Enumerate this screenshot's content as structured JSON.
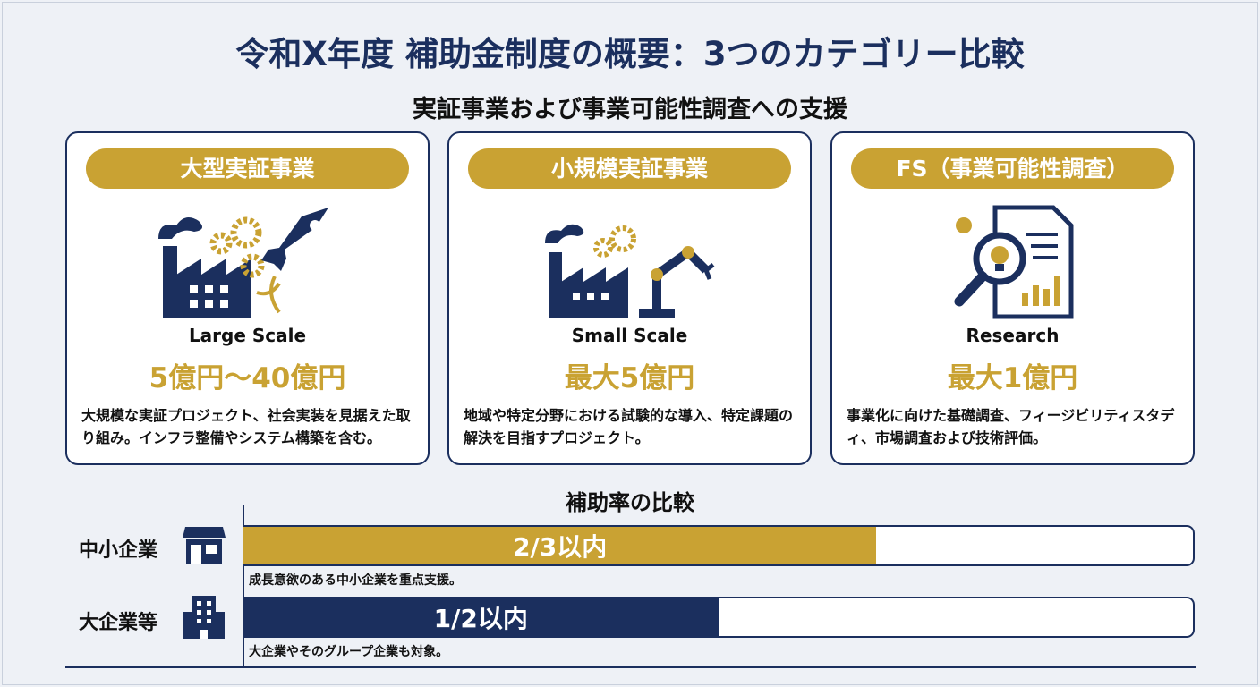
{
  "title": "令和X年度 補助金制度の概要：3つのカテゴリー比較",
  "subtitle": "実証事業および事業可能性調査への支援",
  "colors": {
    "navy": "#1b2f5e",
    "gold": "#c9a233"
  },
  "cards": [
    {
      "heading": "大型実証事業",
      "icon": "factory-gears-rocket-icon",
      "label_en": "Large Scale",
      "amount": "5億円〜40億円",
      "description": "大規模な実証プロジェクト、社会実装を見据えた取り組み。インフラ整備やシステム構築を含む。"
    },
    {
      "heading": "小規模実証事業",
      "icon": "factory-robot-arm-icon",
      "label_en": "Small Scale",
      "amount": "最大5億円",
      "description": "地域や特定分野における試験的な導入、特定課題の解決を目指すプロジェクト。"
    },
    {
      "heading": "FS（事業可能性調査）",
      "icon": "magnifier-document-icon",
      "label_en": "Research",
      "amount": "最大1億円",
      "description": "事業化に向けた基礎調査、フィージビリティスタディ、市場調査および技術評価。"
    }
  ],
  "rates": {
    "heading": "補助率の比較",
    "rows": [
      {
        "label": "中小企業",
        "icon": "store-icon",
        "rate_text": "2/3以内",
        "rate": 0.6667,
        "note": "成長意欲のある中小企業を重点支援。",
        "color": "#c9a233"
      },
      {
        "label": "大企業等",
        "icon": "office-building-icon",
        "rate_text": "1/2以内",
        "rate": 0.5,
        "note": "大企業やそのグループ企業も対象。",
        "color": "#1b2f5e"
      }
    ]
  }
}
